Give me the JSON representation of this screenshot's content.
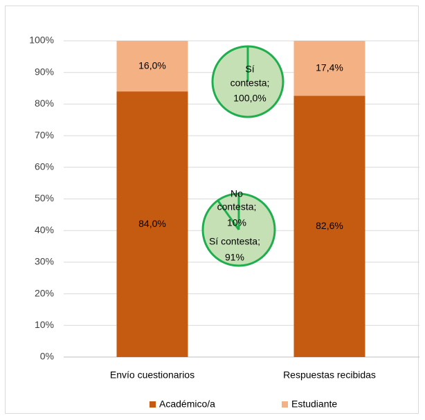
{
  "chart_data": {
    "type": "bar",
    "stacked": true,
    "normalized": true,
    "categories": [
      "Envío cuestionarios",
      "Respuestas recibidas"
    ],
    "series": [
      {
        "name": "Académico/a",
        "values": [
          84.0,
          82.6
        ],
        "labels": [
          "84,0%",
          "82,6%"
        ],
        "color": "#c55a11"
      },
      {
        "name": "Estudiante",
        "values": [
          16.0,
          17.4
        ],
        "labels": [
          "16,0%",
          "17,4%"
        ],
        "color": "#f4b183"
      }
    ],
    "ylim": [
      0,
      100
    ],
    "yticks": [
      {
        "value": 0,
        "label": "0%"
      },
      {
        "value": 10,
        "label": "10%"
      },
      {
        "value": 20,
        "label": "20%"
      },
      {
        "value": 30,
        "label": "30%"
      },
      {
        "value": 40,
        "label": "40%"
      },
      {
        "value": 50,
        "label": "50%"
      },
      {
        "value": 60,
        "label": "60%"
      },
      {
        "value": 70,
        "label": "70%"
      },
      {
        "value": 80,
        "label": "80%"
      },
      {
        "value": 90,
        "label": "90%"
      },
      {
        "value": 100,
        "label": "100%"
      }
    ],
    "grid": true,
    "legend_position": "bottom",
    "inset_pies": [
      {
        "slices": [
          {
            "value": 100.0,
            "label_lines": [
              "Sí",
              "contesta;",
              "100,0%"
            ]
          }
        ],
        "fill": "#c5e0b4",
        "stroke": "#1fae4e"
      },
      {
        "slices": [
          {
            "value": 10,
            "label_lines": [
              "No",
              "contesta;",
              "10%"
            ]
          },
          {
            "value": 91,
            "label_lines": [
              "Sí contesta;",
              "91%"
            ]
          }
        ],
        "fill": "#c5e0b4",
        "stroke": "#1fae4e"
      }
    ]
  }
}
